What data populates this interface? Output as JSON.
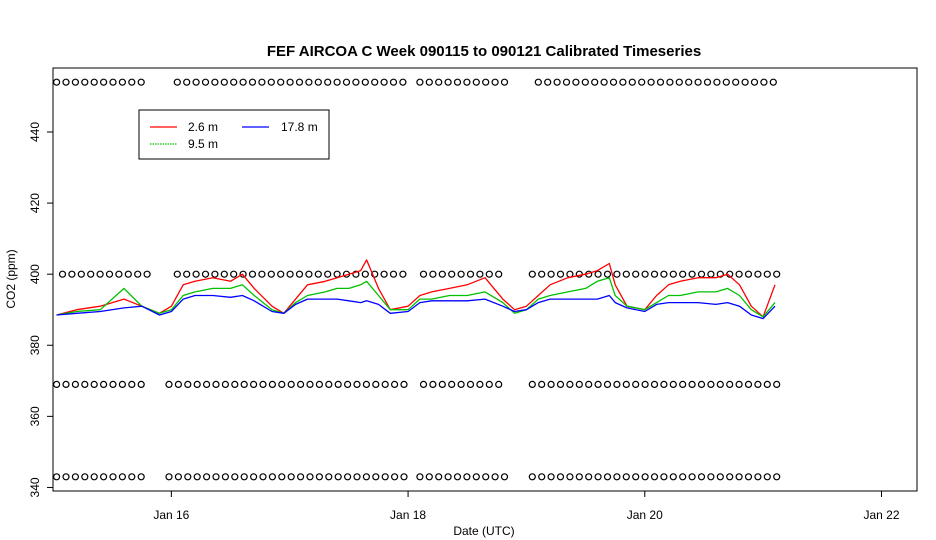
{
  "chart_data": {
    "type": "line",
    "title": "FEF AIRCOA C  Week 090115 to 090121  Calibrated Timeseries",
    "xlabel": "Date (UTC)",
    "ylabel": "CO2 (ppm)",
    "xlim": [
      15.0,
      22.3
    ],
    "ylim": [
      339,
      458
    ],
    "x_ticks": [
      {
        "value": 16,
        "label": "Jan 16"
      },
      {
        "value": 18,
        "label": "Jan 18"
      },
      {
        "value": 20,
        "label": "Jan 20"
      },
      {
        "value": 22,
        "label": "Jan 22"
      }
    ],
    "y_ticks": [
      340,
      360,
      380,
      400,
      420,
      440
    ],
    "grid": false,
    "legend": {
      "position": "top-left",
      "entries": [
        {
          "label": "2.6 m",
          "color": "#ff0000"
        },
        {
          "label": "9.5 m",
          "color": "#00c000"
        },
        {
          "label": "17.8 m",
          "color": "#0000ff"
        }
      ]
    },
    "series": [
      {
        "name": "2.6 m",
        "color": "#ff0000",
        "x": [
          15.03,
          15.2,
          15.4,
          15.6,
          15.75,
          15.9,
          16.0,
          16.1,
          16.2,
          16.35,
          16.5,
          16.6,
          16.7,
          16.85,
          16.95,
          17.05,
          17.15,
          17.3,
          17.4,
          17.5,
          17.6,
          17.65,
          17.75,
          17.85,
          18.0,
          18.1,
          18.2,
          18.35,
          18.5,
          18.65,
          18.8,
          18.9,
          19.0,
          19.1,
          19.2,
          19.35,
          19.5,
          19.6,
          19.7,
          19.75,
          19.85,
          20.0,
          20.1,
          20.2,
          20.3,
          20.45,
          20.6,
          20.7,
          20.8,
          20.9,
          21.0,
          21.1
        ],
        "values": [
          388.5,
          390,
          391,
          393,
          391,
          389,
          391,
          397,
          398,
          399,
          398,
          400,
          396,
          391,
          389,
          393,
          397,
          398,
          399,
          400,
          401,
          404,
          396,
          390,
          391,
          394,
          395,
          396,
          397,
          399,
          393,
          390,
          391,
          394,
          397,
          399,
          400,
          401,
          403,
          397,
          391,
          390,
          394,
          397,
          398,
          399,
          399,
          400,
          397,
          391,
          388,
          397
        ]
      },
      {
        "name": "9.5 m",
        "color": "#00c000",
        "x": [
          15.03,
          15.2,
          15.4,
          15.6,
          15.75,
          15.9,
          16.0,
          16.1,
          16.2,
          16.35,
          16.5,
          16.6,
          16.7,
          16.85,
          16.95,
          17.05,
          17.15,
          17.3,
          17.4,
          17.5,
          17.6,
          17.65,
          17.75,
          17.85,
          18.0,
          18.1,
          18.2,
          18.35,
          18.5,
          18.65,
          18.8,
          18.9,
          19.0,
          19.1,
          19.2,
          19.35,
          19.5,
          19.6,
          19.7,
          19.75,
          19.85,
          20.0,
          20.1,
          20.2,
          20.3,
          20.45,
          20.6,
          20.7,
          20.8,
          20.9,
          21.0,
          21.1
        ],
        "values": [
          388.5,
          389.5,
          390,
          396,
          391,
          389,
          390,
          394,
          395,
          396,
          396,
          397,
          394,
          390,
          389,
          392,
          394,
          395,
          396,
          396,
          397,
          398,
          394,
          390,
          390,
          393,
          393,
          394,
          394,
          395,
          392,
          389,
          390,
          393,
          394,
          395,
          396,
          398,
          399,
          394,
          391,
          390,
          392,
          394,
          394,
          395,
          395,
          396,
          394,
          390,
          388,
          392
        ]
      },
      {
        "name": "17.8 m",
        "color": "#0000ff",
        "x": [
          15.03,
          15.2,
          15.4,
          15.6,
          15.75,
          15.9,
          16.0,
          16.1,
          16.2,
          16.35,
          16.5,
          16.6,
          16.7,
          16.85,
          16.95,
          17.05,
          17.15,
          17.3,
          17.4,
          17.5,
          17.6,
          17.65,
          17.75,
          17.85,
          18.0,
          18.1,
          18.2,
          18.35,
          18.5,
          18.65,
          18.8,
          18.9,
          19.0,
          19.1,
          19.2,
          19.35,
          19.5,
          19.6,
          19.7,
          19.75,
          19.85,
          20.0,
          20.1,
          20.2,
          20.3,
          20.45,
          20.6,
          20.7,
          20.8,
          20.9,
          21.0,
          21.1
        ],
        "values": [
          388.5,
          389,
          389.5,
          390.5,
          391,
          388.5,
          389.5,
          393,
          394,
          394,
          393.5,
          394,
          392.5,
          389.5,
          389,
          391.5,
          393,
          393,
          393,
          392.5,
          392,
          392.5,
          391.5,
          389,
          389.5,
          392,
          392.5,
          392.5,
          392.5,
          393,
          391,
          389.5,
          390,
          392,
          393,
          393,
          393,
          393,
          394,
          392,
          390.5,
          389.5,
          391.5,
          392,
          392,
          392,
          391.5,
          392,
          391,
          388.5,
          387.5,
          391
        ]
      }
    ],
    "marker_rows": [
      {
        "level": 454,
        "marker": "o",
        "segments": [
          [
            15.03,
            15.82
          ],
          [
            16.05,
            17.98
          ],
          [
            18.1,
            18.83
          ],
          [
            19.1,
            21.12
          ]
        ]
      },
      {
        "level": 400,
        "marker": "o",
        "segments": [
          [
            15.08,
            15.82
          ],
          [
            16.05,
            17.98
          ],
          [
            18.13,
            18.83
          ],
          [
            19.05,
            21.12
          ]
        ]
      },
      {
        "level": 369,
        "marker": "o",
        "segments": [
          [
            15.03,
            15.82
          ],
          [
            15.98,
            17.98
          ],
          [
            18.13,
            18.83
          ],
          [
            19.05,
            21.12
          ]
        ]
      },
      {
        "level": 343,
        "marker": "o",
        "segments": [
          [
            15.03,
            15.82
          ],
          [
            15.98,
            17.98
          ],
          [
            18.1,
            18.83
          ],
          [
            19.05,
            21.12
          ]
        ]
      }
    ]
  }
}
